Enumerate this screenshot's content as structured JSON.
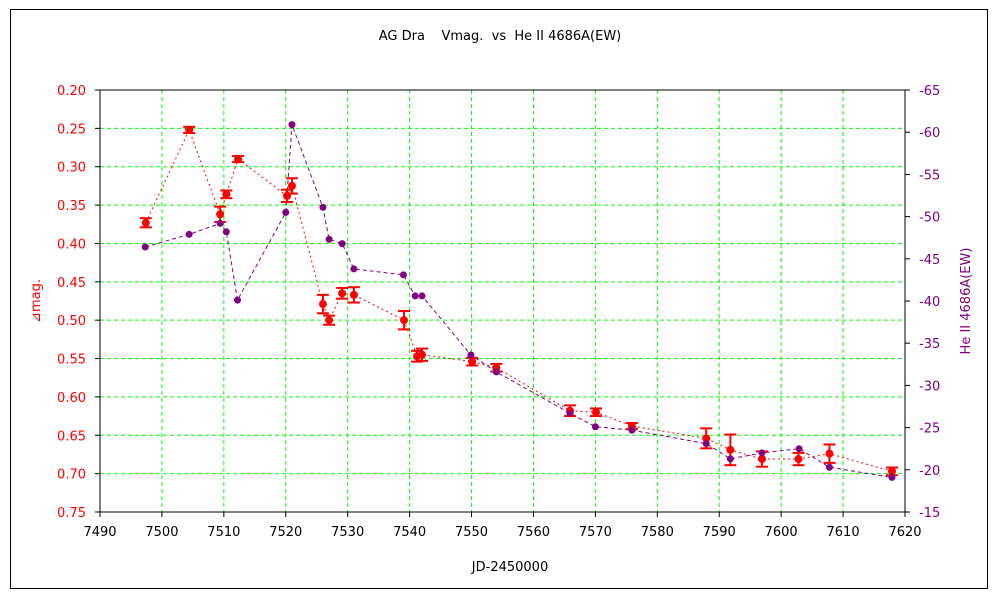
{
  "chart_data": {
    "type": "scatter",
    "title": "AG Dra    Vmag.  vs  He II 4686A(EW)",
    "xlabel": "JD-2450000",
    "ylabel": "⊿mag.",
    "y2label": "He II 4686A(EW)",
    "xlim": [
      7490,
      7620
    ],
    "ylim": [
      0.75,
      0.2
    ],
    "y2lim": [
      -15,
      -65
    ],
    "y_inverted": true,
    "y2_inverted": true,
    "grid": true,
    "x_ticks": [
      "7490",
      "7500",
      "7510",
      "7520",
      "7530",
      "7540",
      "7550",
      "7560",
      "7570",
      "7580",
      "7590",
      "7600",
      "7610",
      "7620"
    ],
    "y_ticks": [
      "0.20",
      "0.25",
      "0.30",
      "0.35",
      "0.40",
      "0.45",
      "0.50",
      "0.55",
      "0.60",
      "0.65",
      "0.70",
      "0.75"
    ],
    "y2_ticks": [
      "-65",
      "-60",
      "-55",
      "-50",
      "-45",
      "-40",
      "-35",
      "-30",
      "-25",
      "-20",
      "-15"
    ],
    "colors": {
      "vmag": "#ff0000",
      "ew": "#800080",
      "grid": "#00ff00"
    },
    "series": [
      {
        "axis": "left",
        "color": "#ff0000",
        "line": "dotted",
        "points": [
          {
            "x": 7497.4,
            "y": 0.373,
            "err": 0.006
          },
          {
            "x": 7504.4,
            "y": 0.252,
            "err": 0.004
          },
          {
            "x": 7509.4,
            "y": 0.362,
            "err": 0.01
          },
          {
            "x": 7510.4,
            "y": 0.336,
            "err": 0.005
          },
          {
            "x": 7512.3,
            "y": 0.29,
            "err": 0.004
          },
          {
            "x": 7520.2,
            "y": 0.338,
            "err": 0.008
          },
          {
            "x": 7521.0,
            "y": 0.325,
            "err": 0.01
          },
          {
            "x": 7526.0,
            "y": 0.479,
            "err": 0.012
          },
          {
            "x": 7527.0,
            "y": 0.5,
            "err": 0.006
          },
          {
            "x": 7529.1,
            "y": 0.465,
            "err": 0.007
          },
          {
            "x": 7531.0,
            "y": 0.467,
            "err": 0.01
          },
          {
            "x": 7539.1,
            "y": 0.5,
            "err": 0.012
          },
          {
            "x": 7541.2,
            "y": 0.547,
            "err": 0.007
          },
          {
            "x": 7542.0,
            "y": 0.545,
            "err": 0.008
          },
          {
            "x": 7550.1,
            "y": 0.554,
            "err": 0.005
          },
          {
            "x": 7554.0,
            "y": 0.562,
            "err": 0.005
          },
          {
            "x": 7565.9,
            "y": 0.618,
            "err": 0.007
          },
          {
            "x": 7570.1,
            "y": 0.62,
            "err": 0.005
          },
          {
            "x": 7575.9,
            "y": 0.638,
            "err": 0.004
          },
          {
            "x": 7587.9,
            "y": 0.654,
            "err": 0.013
          },
          {
            "x": 7591.8,
            "y": 0.669,
            "err": 0.02
          },
          {
            "x": 7596.9,
            "y": 0.681,
            "err": 0.01
          },
          {
            "x": 7602.8,
            "y": 0.681,
            "err": 0.008
          },
          {
            "x": 7607.8,
            "y": 0.674,
            "err": 0.012
          },
          {
            "x": 7617.9,
            "y": 0.697,
            "err": 0.005
          }
        ]
      },
      {
        "axis": "right",
        "color": "#800080",
        "line": "dashed",
        "points": [
          {
            "x": 7497.3,
            "y": -46.4
          },
          {
            "x": 7504.4,
            "y": -47.9
          },
          {
            "x": 7509.4,
            "y": -49.2
          },
          {
            "x": 7510.4,
            "y": -48.2
          },
          {
            "x": 7512.2,
            "y": -40.1
          },
          {
            "x": 7520.0,
            "y": -50.5
          },
          {
            "x": 7521.0,
            "y": -60.9
          },
          {
            "x": 7526.0,
            "y": -51.1
          },
          {
            "x": 7527.0,
            "y": -47.3
          },
          {
            "x": 7529.1,
            "y": -46.8
          },
          {
            "x": 7531.0,
            "y": -43.8
          },
          {
            "x": 7539.0,
            "y": -43.1
          },
          {
            "x": 7540.9,
            "y": -40.6
          },
          {
            "x": 7542.0,
            "y": -40.6
          },
          {
            "x": 7549.9,
            "y": -33.6
          },
          {
            "x": 7554.0,
            "y": -31.6
          },
          {
            "x": 7565.9,
            "y": -26.7
          },
          {
            "x": 7570.0,
            "y": -25.1
          },
          {
            "x": 7575.9,
            "y": -24.7
          },
          {
            "x": 7587.9,
            "y": -23.1
          },
          {
            "x": 7591.8,
            "y": -21.3
          },
          {
            "x": 7596.9,
            "y": -22.0
          },
          {
            "x": 7602.9,
            "y": -22.5
          },
          {
            "x": 7607.8,
            "y": -20.3
          },
          {
            "x": 7617.9,
            "y": -19.1
          }
        ]
      }
    ]
  }
}
